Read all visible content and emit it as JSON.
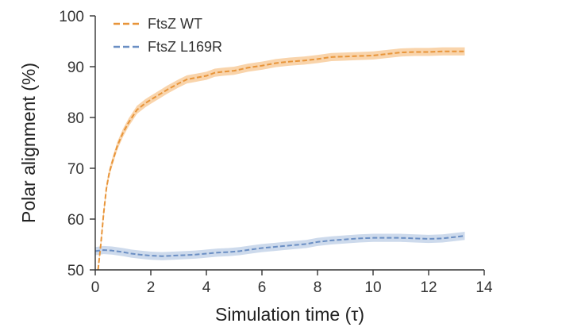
{
  "chart_data": {
    "type": "line",
    "title": "",
    "xlabel": "Simulation time (τ)",
    "ylabel": "Polar alignment (%)",
    "xlim": [
      0,
      14
    ],
    "ylim": [
      50,
      100
    ],
    "xticks": [
      0,
      2,
      4,
      6,
      8,
      10,
      12,
      14
    ],
    "yticks": [
      50,
      60,
      70,
      80,
      90,
      100
    ],
    "xtick_labels": [
      "0",
      "2",
      "4",
      "6",
      "8",
      "10",
      "12",
      "14"
    ],
    "ytick_labels": [
      "50",
      "60",
      "70",
      "80",
      "90",
      "100"
    ],
    "grid": false,
    "legend_position": "top-left",
    "series": [
      {
        "name": "FtsZ WT",
        "color": "#e8953a",
        "band_color": "#f7c58f",
        "band_halfwidth": 0.8,
        "style": "dashed",
        "x": [
          0.1,
          0.2,
          0.3,
          0.4,
          0.5,
          0.6,
          0.8,
          1.0,
          1.2,
          1.5,
          1.8,
          2.0,
          2.3,
          2.6,
          3.0,
          3.3,
          3.6,
          4.0,
          4.3,
          4.6,
          5.0,
          5.5,
          6.0,
          6.5,
          7.0,
          7.5,
          8.0,
          8.5,
          9.0,
          9.5,
          10.0,
          10.5,
          11.0,
          11.5,
          12.0,
          12.5,
          13.0,
          13.3
        ],
        "y": [
          50,
          55,
          61,
          66,
          69,
          71,
          74.5,
          77,
          79,
          81.5,
          82.8,
          83.5,
          84.5,
          85.5,
          86.7,
          87.5,
          87.8,
          88.2,
          88.8,
          89,
          89.2,
          89.8,
          90.2,
          90.7,
          91,
          91.2,
          91.5,
          91.9,
          92,
          92.1,
          92.2,
          92.5,
          92.8,
          92.9,
          92.9,
          93,
          93,
          93
        ]
      },
      {
        "name": "FtsZ L169R",
        "color": "#6b8fc4",
        "band_color": "#bccde6",
        "band_halfwidth": 0.8,
        "style": "dashed",
        "x": [
          0,
          0.3,
          0.6,
          1.0,
          1.3,
          1.6,
          2.0,
          2.4,
          2.8,
          3.2,
          3.6,
          4.0,
          4.4,
          4.8,
          5.2,
          5.6,
          6.0,
          6.4,
          6.8,
          7.2,
          7.6,
          8.0,
          8.5,
          9.0,
          9.5,
          10.0,
          10.5,
          11.0,
          11.5,
          12.0,
          12.5,
          13.0,
          13.3
        ],
        "y": [
          53.7,
          53.9,
          53.8,
          53.5,
          53.2,
          53.0,
          52.8,
          52.7,
          52.8,
          52.9,
          53.0,
          53.2,
          53.4,
          53.5,
          53.7,
          54.0,
          54.3,
          54.5,
          54.7,
          54.9,
          55.1,
          55.5,
          55.8,
          56.0,
          56.2,
          56.3,
          56.3,
          56.3,
          56.2,
          56.1,
          56.2,
          56.5,
          56.7
        ]
      }
    ]
  }
}
